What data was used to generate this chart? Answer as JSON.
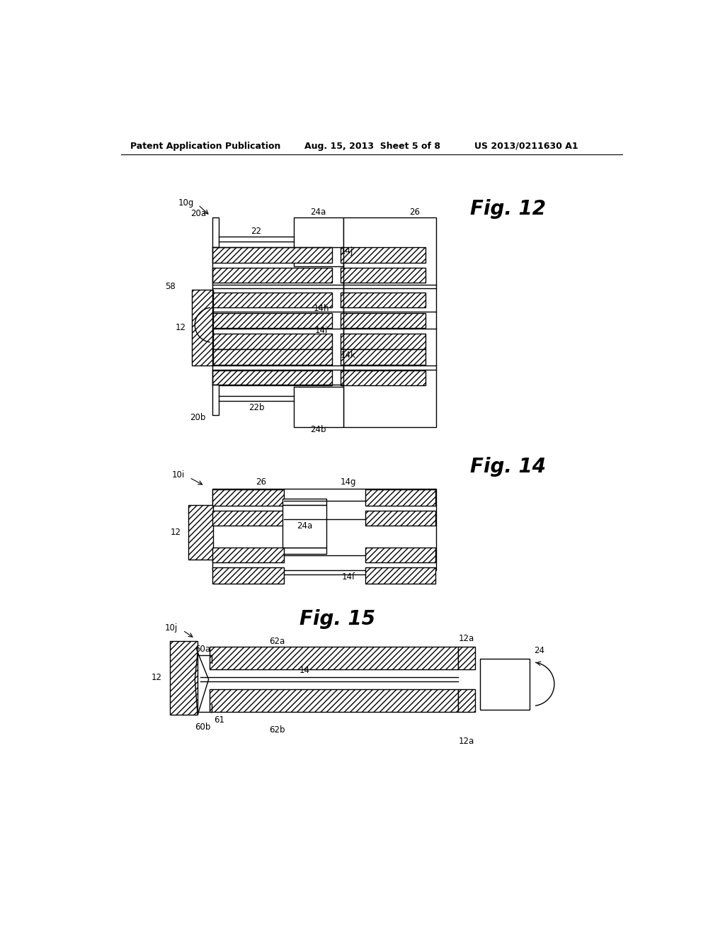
{
  "bg_color": "#ffffff",
  "header_left": "Patent Application Publication",
  "header_mid": "Aug. 15, 2013  Sheet 5 of 8",
  "header_right": "US 2013/0211630 A1",
  "fig12_title": "Fig. 12",
  "fig14_title": "Fig. 14",
  "fig15_title": "Fig. 15"
}
